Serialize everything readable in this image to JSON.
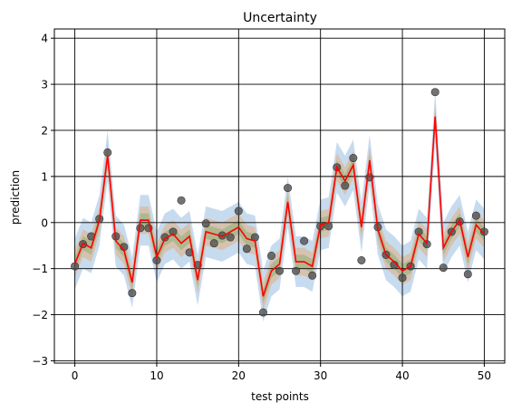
{
  "chart_data": {
    "type": "line",
    "title": "Uncertainty",
    "xlabel": "test points",
    "ylabel": "prediction",
    "xlim": [
      -2.5,
      52.5
    ],
    "ylim": [
      -3.05,
      4.2
    ],
    "xticks": [
      0,
      10,
      20,
      30,
      40,
      50
    ],
    "yticks": [
      -3,
      -2,
      -1,
      0,
      1,
      2,
      3,
      4
    ],
    "grid": true,
    "colors": {
      "mean": "#ff0000",
      "points": "#4d4d4d",
      "band_outer": "#a9c8e6",
      "band_mid": "#d9b99b",
      "band_inner": "#a8b58a"
    },
    "x": [
      0,
      1,
      2,
      3,
      4,
      5,
      6,
      7,
      8,
      9,
      10,
      11,
      12,
      13,
      14,
      15,
      16,
      17,
      18,
      19,
      20,
      21,
      22,
      23,
      24,
      25,
      26,
      27,
      28,
      29,
      30,
      31,
      32,
      33,
      34,
      35,
      36,
      37,
      38,
      39,
      40,
      41,
      42,
      43,
      44,
      45,
      46,
      47,
      48,
      49,
      50
    ],
    "points": [
      -0.95,
      -0.47,
      -0.3,
      0.08,
      1.52,
      -0.3,
      -0.53,
      -1.53,
      -0.12,
      -0.12,
      -0.82,
      -0.32,
      -0.2,
      0.48,
      -0.65,
      -0.92,
      -0.02,
      -0.45,
      -0.28,
      -0.32,
      0.25,
      -0.57,
      -0.32,
      -1.95,
      -0.72,
      -1.05,
      0.75,
      -1.05,
      -0.4,
      -1.15,
      -0.08,
      -0.08,
      1.2,
      0.8,
      1.4,
      -0.82,
      0.98,
      -0.1,
      -0.7,
      -0.92,
      -1.2,
      -0.95,
      -0.2,
      -0.47,
      2.83,
      -0.98,
      -0.2,
      0.02,
      -1.12,
      0.15,
      -0.2
    ],
    "mean": [
      -0.9,
      -0.45,
      -0.55,
      0.05,
      1.45,
      -0.4,
      -0.6,
      -1.3,
      0.05,
      0.05,
      -0.75,
      -0.35,
      -0.25,
      -0.45,
      -0.3,
      -1.25,
      -0.2,
      -0.25,
      -0.3,
      -0.2,
      -0.1,
      -0.35,
      -0.4,
      -1.6,
      -1.05,
      -0.9,
      0.45,
      -0.85,
      -0.85,
      -0.95,
      -0.05,
      0.0,
      1.2,
      0.9,
      1.25,
      -0.1,
      1.35,
      -0.15,
      -0.7,
      -0.85,
      -1.05,
      -0.95,
      -0.25,
      -0.45,
      2.3,
      -0.55,
      -0.2,
      0.05,
      -0.75,
      -0.05,
      -0.25
    ],
    "band_halfwidths": {
      "inner": 0.15,
      "mid": 0.3,
      "outer": 0.55
    }
  }
}
